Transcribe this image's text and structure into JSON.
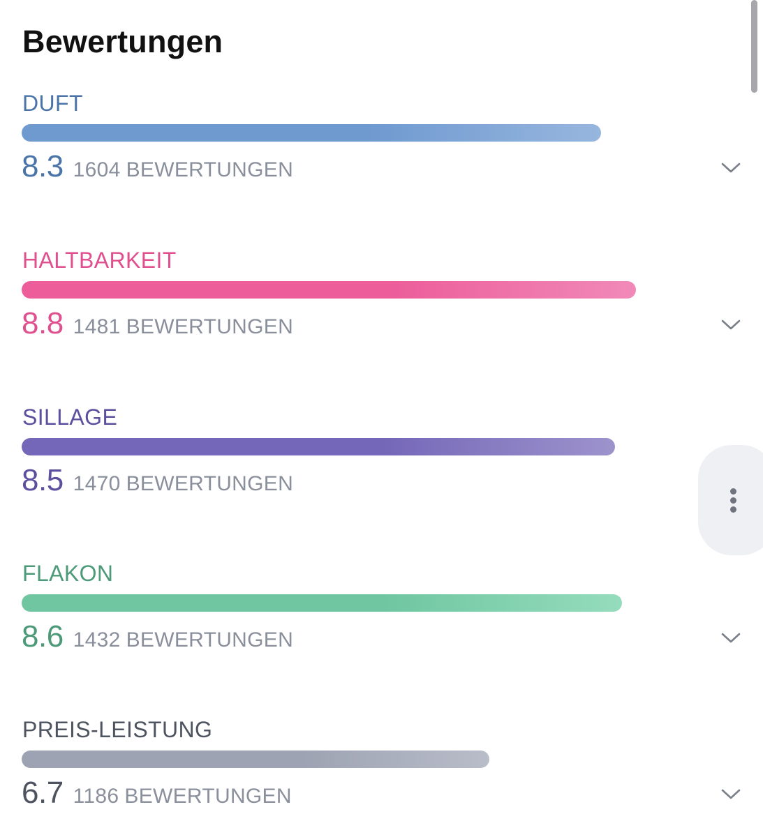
{
  "header": {
    "title": "Bewertungen"
  },
  "ratings": [
    {
      "label": "DUFT",
      "score": "8.3",
      "score_value": 8.3,
      "count": "1604",
      "count_label": "BEWERTUNGEN",
      "color": "#4a74a8",
      "bar_color_start": "#6f9ad0",
      "bar_color_end": "#97b6de",
      "expandable": true
    },
    {
      "label": "HALTBARKEIT",
      "score": "8.8",
      "score_value": 8.8,
      "count": "1481",
      "count_label": "BEWERTUNGEN",
      "color": "#e0508e",
      "bar_color_start": "#ec5d9a",
      "bar_color_end": "#f18ab8",
      "expandable": true
    },
    {
      "label": "SILLAGE",
      "score": "8.5",
      "score_value": 8.5,
      "count": "1470",
      "count_label": "BEWERTUNGEN",
      "color": "#5b4f9e",
      "bar_color_start": "#7466b8",
      "bar_color_end": "#9d93cc",
      "expandable": false
    },
    {
      "label": "FLAKON",
      "score": "8.6",
      "score_value": 8.6,
      "count": "1432",
      "count_label": "BEWERTUNGEN",
      "color": "#4c9a78",
      "bar_color_start": "#6fc6a0",
      "bar_color_end": "#95dcbc",
      "expandable": true
    },
    {
      "label": "PREIS-LEISTUNG",
      "score": "6.7",
      "score_value": 6.7,
      "count": "1186",
      "count_label": "BEWERTUNGEN",
      "color": "#4d535f",
      "bar_color_start": "#9ea3b3",
      "bar_color_end": "#b9bdc9",
      "expandable": true
    }
  ],
  "scale_max": 9.9,
  "icons": {
    "expand": "chevron-down-icon",
    "more": "more-vertical-icon"
  }
}
